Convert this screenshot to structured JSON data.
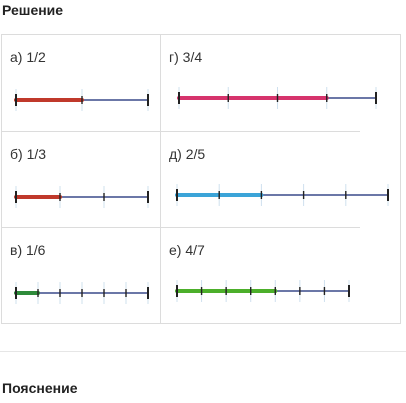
{
  "section_title": "Решение",
  "footer_title": "Пояснение",
  "cells": [
    {
      "label": "а) 1/2",
      "num": 1,
      "den": 2,
      "color": "#c0392b"
    },
    {
      "label": "г) 3/4",
      "num": 3,
      "den": 4,
      "color": "#d6336c"
    },
    {
      "label": "б) 1/3",
      "num": 1,
      "den": 3,
      "color": "#c0392b"
    },
    {
      "label": "д) 2/5",
      "num": 2,
      "den": 5,
      "color": "#3ba4d8"
    },
    {
      "label": "в) 1/6",
      "num": 1,
      "den": 6,
      "color": "#2e8b3a"
    },
    {
      "label": "е) 4/7",
      "num": 4,
      "den": 7,
      "color": "#4caf2a"
    }
  ],
  "axis_color": "#3a4a8a"
}
